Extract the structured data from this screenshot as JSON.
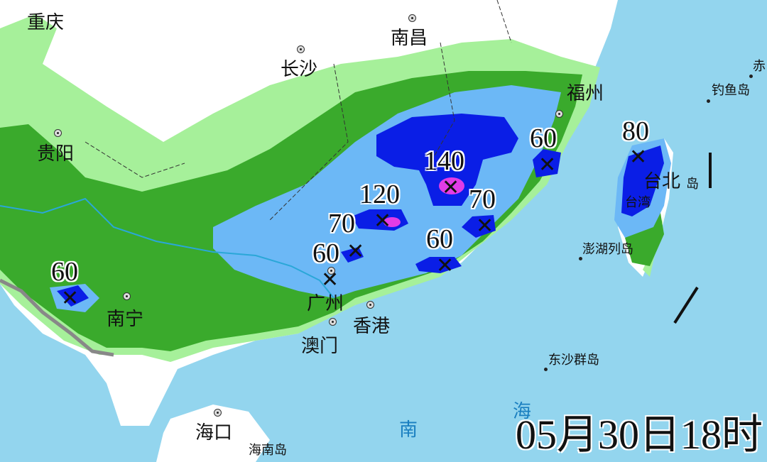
{
  "timestamp": "05月30日18时",
  "colors": {
    "ocean": "#93d5ee",
    "land": "#ffffff",
    "rain_10_25": "#a6f09a",
    "rain_25_50": "#3aaa2c",
    "rain_50_100": "#6cb8f6",
    "rain_100_250": "#0a1ee6",
    "rain_250_plus": "#e23ce6"
  },
  "cities": [
    "重庆",
    "长沙",
    "南昌",
    "福州",
    "贵阳",
    "南宁",
    "广州",
    "香港",
    "澳门",
    "海口",
    "台北"
  ],
  "islands": [
    "钓鱼岛",
    "赤",
    "台湾",
    "岛",
    "澎湖列岛",
    "东沙群岛",
    "海南岛"
  ],
  "sea_labels": [
    "海",
    "南"
  ],
  "rain_maxima": [
    "140",
    "120",
    "70",
    "70",
    "60",
    "60",
    "60",
    "60",
    "80"
  ]
}
